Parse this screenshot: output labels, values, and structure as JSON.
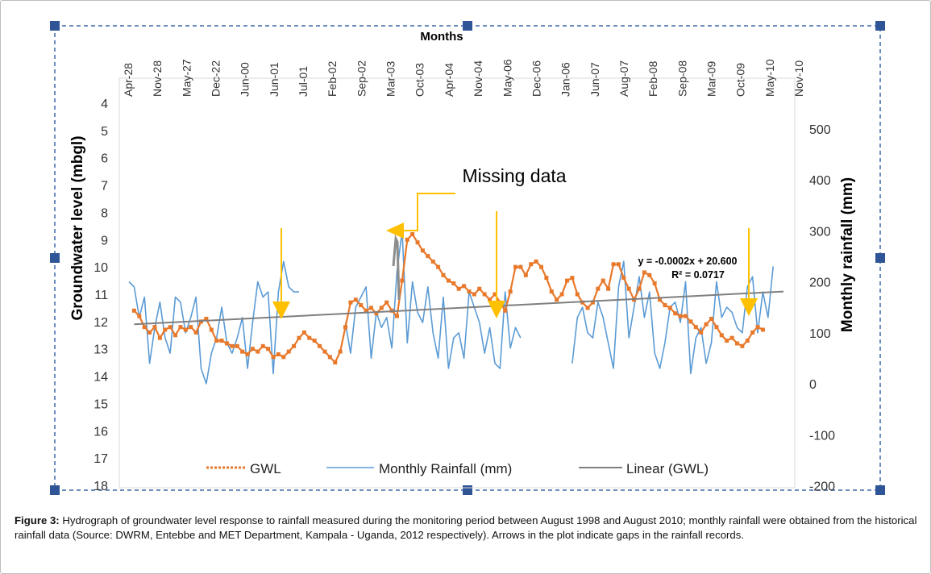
{
  "caption": {
    "label": "Figure 3:",
    "text": "Hydrograph of groundwater level response to rainfall measured during the monitoring period between August 1998 and August 2010; monthly rainfall were obtained from the historical rainfall data (Source: DWRM, Entebbe and MET Department, Kampala - Uganda, 2012 respectively). Arrows in the plot indicate gaps in the rainfall records."
  },
  "chart_data": {
    "type": "line",
    "xlabel": "Months",
    "ylabel": "Groundwater level (mbgl)",
    "y2label": "Monthly rainfall (mm)",
    "x_tick_labels": [
      "Apr-28",
      "Nov-28",
      "May-27",
      "Dec-22",
      "Jun-00",
      "Jun-01",
      "Jul-01",
      "Feb-02",
      "Sep-02",
      "Mar-03",
      "Oct-03",
      "Apr-04",
      "Nov-04",
      "May-06",
      "Dec-06",
      "Jan-06",
      "Jun-07",
      "Aug-07",
      "Feb-08",
      "Sep-08",
      "Mar-09",
      "Oct-09",
      "May-10",
      "Nov-10"
    ],
    "y_left": {
      "min": 4,
      "max": 18,
      "inverted": true,
      "ticks": [
        4,
        5,
        6,
        7,
        8,
        9,
        10,
        11,
        12,
        13,
        14,
        15,
        16,
        17,
        18
      ]
    },
    "y_right": {
      "min": -200,
      "max": 500,
      "ticks": [
        500,
        400,
        300,
        200,
        100,
        0,
        -100,
        -200
      ]
    },
    "grid": false,
    "legend_position": "bottom",
    "legend": [
      "GWL",
      "Monthly Rainfall (mm)",
      "Linear (GWL)"
    ],
    "series": [
      {
        "name": "GWL",
        "axis": "left",
        "color": "#e8782a",
        "points": [
          [
            1,
            11.6
          ],
          [
            2,
            11.8
          ],
          [
            3,
            12.2
          ],
          [
            4,
            12.4
          ],
          [
            5,
            12.2
          ],
          [
            6,
            12.6
          ],
          [
            7,
            12.3
          ],
          [
            8,
            12.2
          ],
          [
            9,
            12.5
          ],
          [
            10,
            12.2
          ],
          [
            11,
            12.3
          ],
          [
            12,
            12.2
          ],
          [
            13,
            12.4
          ],
          [
            14,
            12.0
          ],
          [
            15,
            11.9
          ],
          [
            16,
            12.3
          ],
          [
            17,
            12.7
          ],
          [
            18,
            12.7
          ],
          [
            19,
            12.8
          ],
          [
            20,
            12.9
          ],
          [
            21,
            12.9
          ],
          [
            22,
            13.1
          ],
          [
            23,
            13.2
          ],
          [
            24,
            13.0
          ],
          [
            25,
            13.1
          ],
          [
            26,
            12.9
          ],
          [
            27,
            13.0
          ],
          [
            28,
            13.3
          ],
          [
            29,
            13.2
          ],
          [
            30,
            13.3
          ],
          [
            31,
            13.1
          ],
          [
            32,
            12.9
          ],
          [
            33,
            12.6
          ],
          [
            34,
            12.4
          ],
          [
            35,
            12.6
          ],
          [
            36,
            12.7
          ],
          [
            37,
            12.9
          ],
          [
            38,
            13.1
          ],
          [
            39,
            13.3
          ],
          [
            40,
            13.5
          ],
          [
            41,
            13.1
          ],
          [
            42,
            12.2
          ],
          [
            43,
            11.3
          ],
          [
            44,
            11.2
          ],
          [
            45,
            11.4
          ],
          [
            46,
            11.6
          ],
          [
            47,
            11.5
          ],
          [
            48,
            11.7
          ],
          [
            49,
            11.5
          ],
          [
            50,
            11.3
          ],
          [
            51,
            11.6
          ],
          [
            52,
            11.8
          ],
          [
            53,
            10.5
          ],
          [
            54,
            9.0
          ],
          [
            55,
            8.8
          ],
          [
            56,
            9.1
          ],
          [
            57,
            9.4
          ],
          [
            58,
            9.6
          ],
          [
            59,
            9.8
          ],
          [
            60,
            10.0
          ],
          [
            61,
            10.3
          ],
          [
            62,
            10.5
          ],
          [
            63,
            10.6
          ],
          [
            64,
            10.8
          ],
          [
            65,
            10.7
          ],
          [
            66,
            10.9
          ],
          [
            67,
            11.0
          ],
          [
            68,
            10.8
          ],
          [
            69,
            11.0
          ],
          [
            70,
            11.2
          ],
          [
            71,
            11.0
          ],
          [
            72,
            11.3
          ],
          [
            73,
            11.6
          ],
          [
            74,
            10.9
          ],
          [
            75,
            10.0
          ],
          [
            76,
            10.0
          ],
          [
            77,
            10.3
          ],
          [
            78,
            9.9
          ],
          [
            79,
            9.8
          ],
          [
            80,
            10.0
          ],
          [
            81,
            10.4
          ],
          [
            82,
            10.9
          ],
          [
            83,
            11.2
          ],
          [
            84,
            11.0
          ],
          [
            85,
            10.5
          ],
          [
            86,
            10.4
          ],
          [
            87,
            11.0
          ],
          [
            88,
            11.3
          ],
          [
            89,
            11.5
          ],
          [
            90,
            11.3
          ],
          [
            91,
            10.8
          ],
          [
            92,
            10.5
          ],
          [
            93,
            10.8
          ],
          [
            94,
            9.9
          ],
          [
            95,
            9.9
          ],
          [
            96,
            10.4
          ],
          [
            97,
            10.8
          ],
          [
            98,
            11.2
          ],
          [
            99,
            10.8
          ],
          [
            100,
            10.2
          ],
          [
            101,
            10.3
          ],
          [
            102,
            10.6
          ],
          [
            103,
            11.2
          ],
          [
            104,
            11.4
          ],
          [
            105,
            11.5
          ],
          [
            106,
            11.7
          ],
          [
            107,
            11.8
          ],
          [
            108,
            11.8
          ],
          [
            109,
            12.0
          ],
          [
            110,
            12.2
          ],
          [
            111,
            12.4
          ],
          [
            112,
            12.1
          ],
          [
            113,
            11.9
          ],
          [
            114,
            12.2
          ],
          [
            115,
            12.5
          ],
          [
            116,
            12.7
          ],
          [
            117,
            12.6
          ],
          [
            118,
            12.8
          ],
          [
            119,
            12.9
          ],
          [
            120,
            12.7
          ],
          [
            121,
            12.4
          ],
          [
            122,
            12.2
          ],
          [
            123,
            12.3
          ]
        ]
      },
      {
        "name": "Monthly Rainfall (mm)",
        "axis": "right",
        "color": "#5b9bd5",
        "points": [
          [
            0,
            200
          ],
          [
            1,
            190
          ],
          [
            2,
            130
          ],
          [
            3,
            170
          ],
          [
            4,
            40
          ],
          [
            5,
            110
          ],
          [
            6,
            160
          ],
          [
            7,
            90
          ],
          [
            8,
            60
          ],
          [
            9,
            170
          ],
          [
            10,
            160
          ],
          [
            11,
            100
          ],
          [
            12,
            130
          ],
          [
            13,
            170
          ],
          [
            14,
            30
          ],
          [
            15,
            0
          ],
          [
            16,
            60
          ],
          [
            17,
            90
          ],
          [
            18,
            150
          ],
          [
            19,
            80
          ],
          [
            20,
            60
          ],
          [
            21,
            90
          ],
          [
            22,
            130
          ],
          [
            23,
            30
          ],
          [
            24,
            120
          ],
          [
            25,
            200
          ],
          [
            26,
            170
          ],
          [
            27,
            180
          ],
          [
            28,
            20
          ],
          [
            29,
            180
          ],
          [
            30,
            240
          ],
          [
            31,
            190
          ],
          [
            32,
            180
          ],
          [
            33,
            180
          ],
          [
            34,
            null
          ],
          [
            42,
            120
          ],
          [
            43,
            60
          ],
          [
            44,
            150
          ],
          [
            45,
            170
          ],
          [
            46,
            190
          ],
          [
            47,
            50
          ],
          [
            48,
            140
          ],
          [
            49,
            110
          ],
          [
            50,
            130
          ],
          [
            51,
            70
          ],
          [
            52,
            220
          ],
          [
            53,
            300
          ],
          [
            54,
            80
          ],
          [
            55,
            200
          ],
          [
            56,
            140
          ],
          [
            57,
            120
          ],
          [
            58,
            190
          ],
          [
            59,
            100
          ],
          [
            60,
            50
          ],
          [
            61,
            170
          ],
          [
            62,
            30
          ],
          [
            63,
            90
          ],
          [
            64,
            100
          ],
          [
            65,
            50
          ],
          [
            66,
            180
          ],
          [
            67,
            150
          ],
          [
            68,
            120
          ],
          [
            69,
            60
          ],
          [
            70,
            110
          ],
          [
            71,
            40
          ],
          [
            72,
            30
          ],
          [
            73,
            180
          ],
          [
            74,
            70
          ],
          [
            75,
            110
          ],
          [
            76,
            90
          ],
          [
            77,
            null
          ],
          [
            86,
            40
          ],
          [
            87,
            130
          ],
          [
            88,
            150
          ],
          [
            89,
            100
          ],
          [
            90,
            90
          ],
          [
            91,
            160
          ],
          [
            92,
            130
          ],
          [
            93,
            80
          ],
          [
            94,
            30
          ],
          [
            95,
            190
          ],
          [
            96,
            240
          ],
          [
            97,
            90
          ],
          [
            98,
            150
          ],
          [
            99,
            210
          ],
          [
            100,
            130
          ],
          [
            101,
            180
          ],
          [
            102,
            60
          ],
          [
            103,
            30
          ],
          [
            104,
            80
          ],
          [
            105,
            150
          ],
          [
            106,
            160
          ],
          [
            107,
            120
          ],
          [
            108,
            200
          ],
          [
            109,
            20
          ],
          [
            110,
            90
          ],
          [
            111,
            110
          ],
          [
            112,
            40
          ],
          [
            113,
            80
          ],
          [
            114,
            200
          ],
          [
            115,
            130
          ],
          [
            116,
            150
          ],
          [
            117,
            140
          ],
          [
            118,
            110
          ],
          [
            119,
            100
          ],
          [
            120,
            190
          ],
          [
            121,
            210
          ],
          [
            122,
            100
          ],
          [
            123,
            180
          ],
          [
            124,
            130
          ],
          [
            125,
            230
          ]
        ]
      },
      {
        "name": "Linear (GWL)",
        "axis": "left",
        "color": "#7f7f7f",
        "points": [
          [
            1,
            12.1
          ],
          [
            127,
            10.9
          ]
        ]
      }
    ],
    "annotations": {
      "missing_data_label": "Missing data",
      "equation": "y = -0.0002x + 20.600",
      "r_squared": "R² = 0.0717"
    }
  }
}
